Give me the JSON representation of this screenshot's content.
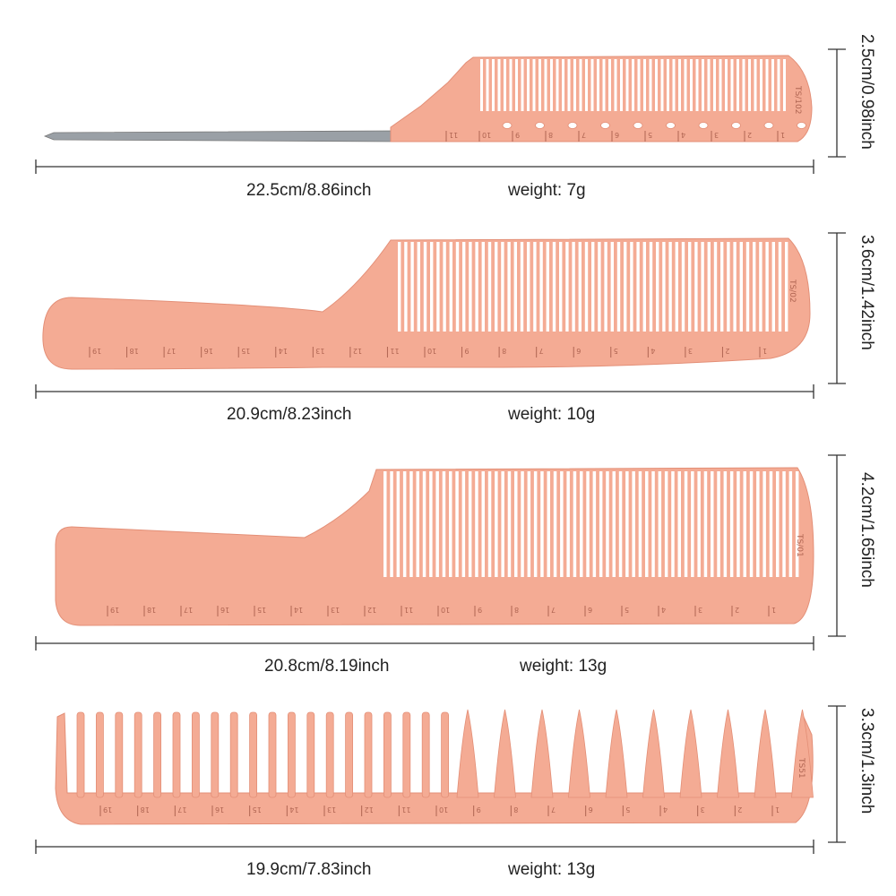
{
  "colors": {
    "comb": "#f4ab94",
    "comb_edge": "#e38f77",
    "comb_mark": "#b06552",
    "steel": "#9aa0a6",
    "line": "#333333"
  },
  "combs": [
    {
      "model": "TS/102",
      "length": "22.5cm/8.86inch",
      "weight": "weight:  7g",
      "height": "2.5cm/0.98inch",
      "scale": [
        "1",
        "2",
        "3",
        "4",
        "5",
        "6",
        "7",
        "8",
        "9",
        "10",
        "11"
      ]
    },
    {
      "model": "TS/02",
      "length": "20.9cm/8.23inch",
      "weight": "weight:  10g",
      "height": "3.6cm/1.42inch",
      "scale": [
        "1",
        "2",
        "3",
        "4",
        "5",
        "6",
        "7",
        "8",
        "9",
        "10",
        "11",
        "12",
        "13",
        "14",
        "15",
        "16",
        "17",
        "18",
        "19"
      ]
    },
    {
      "model": "TS/01",
      "length": "20.8cm/8.19inch",
      "weight": "weight:  13g",
      "height": "4.2cm/1.65inch",
      "scale": [
        "1",
        "2",
        "3",
        "4",
        "5",
        "6",
        "7",
        "8",
        "9",
        "10",
        "11",
        "12",
        "13",
        "14",
        "15",
        "16",
        "17",
        "18",
        "19"
      ]
    },
    {
      "model": "TS51",
      "length": "19.9cm/7.83inch",
      "weight": "weight:  13g",
      "height": "3.3cm/1.3inch",
      "scale": [
        "1",
        "2",
        "3",
        "4",
        "5",
        "6",
        "7",
        "8",
        "9",
        "10",
        "11",
        "12",
        "13",
        "14",
        "15",
        "16",
        "17",
        "18",
        "19"
      ]
    }
  ]
}
